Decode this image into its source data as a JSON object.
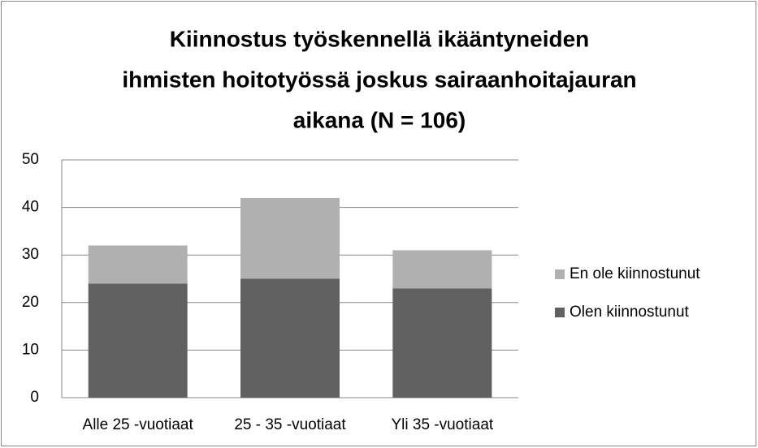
{
  "chart_data": {
    "type": "stacked_bar",
    "title": [
      "Kiinnostus työskennellä ikääntyneiden",
      "ihmisten hoitotyössä joskus sairaanhoitajauran",
      "aikana (N = 106)"
    ],
    "categories": [
      "Alle 25 -vuotiaat",
      "25 - 35 -vuotiaat",
      "Yli 35 -vuotiaat"
    ],
    "series": [
      {
        "name": "Olen kiinnostunut",
        "color": "#616161",
        "values": [
          24,
          25,
          23
        ]
      },
      {
        "name": "En ole kiinnostunut",
        "color": "#b0b0b0",
        "values": [
          8,
          17,
          8
        ]
      }
    ],
    "ylim": [
      0,
      50
    ],
    "yticks": [
      0,
      10,
      20,
      30,
      40,
      50
    ],
    "grid": true,
    "legend": "right"
  }
}
